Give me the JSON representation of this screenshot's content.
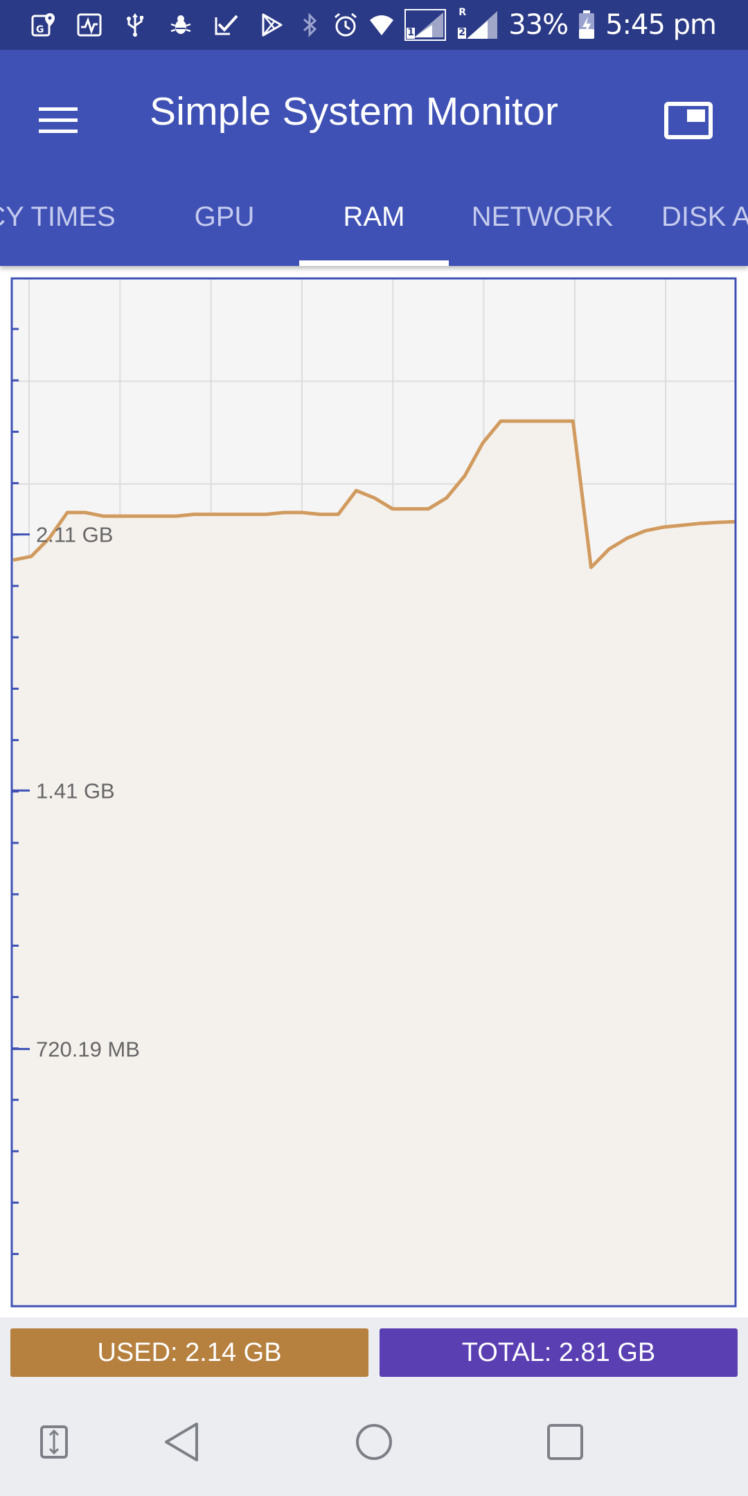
{
  "status_bar": {
    "battery_percent": "33%",
    "time": "5:45 pm",
    "sim1_label": "1",
    "sim2_label": "2",
    "roaming_label": "R",
    "left_icons": [
      "google-maps-notification-icon",
      "activity-monitor-icon",
      "usb-icon",
      "debug-bug-icon",
      "checkmark-task-icon",
      "play-store-icon"
    ],
    "right_icons": [
      "bluetooth-icon",
      "alarm-icon",
      "wifi-icon",
      "signal-sim1-icon",
      "signal-sim2-icon",
      "battery-charging-icon"
    ]
  },
  "app_bar": {
    "title": "Simple System Monitor",
    "menu_icon": "hamburger-menu-icon",
    "action_icon": "picture-in-picture-icon"
  },
  "tabs": [
    {
      "label": "CY TIMES",
      "active": false
    },
    {
      "label": "GPU",
      "active": false
    },
    {
      "label": "RAM",
      "active": true
    },
    {
      "label": "NETWORK",
      "active": false
    },
    {
      "label": "DISK A",
      "active": false
    }
  ],
  "chart_data": {
    "type": "area",
    "title": "",
    "xlabel": "",
    "ylabel": "",
    "y_unit": "GB",
    "y_tick_labels": [
      "720.19 MB",
      "1.41 GB",
      "2.11 GB"
    ],
    "y_tick_values": [
      0.7033,
      1.41,
      2.11
    ],
    "ylim": [
      0,
      2.81
    ],
    "grid": true,
    "line_color": "#d19a5e",
    "fill_color": "#f4f1ed",
    "series": [
      {
        "values": [
          2.04,
          2.05,
          2.1,
          2.17,
          2.17,
          2.16,
          2.16,
          2.16,
          2.16,
          2.16,
          2.165,
          2.165,
          2.165,
          2.165,
          2.165,
          2.17,
          2.17,
          2.165,
          2.165,
          2.23,
          2.21,
          2.18,
          2.18,
          2.18,
          2.21,
          2.27,
          2.36,
          2.42,
          2.42,
          2.42,
          2.42,
          2.42,
          2.02,
          2.07,
          2.1,
          2.12,
          2.13,
          2.135,
          2.14,
          2.143,
          2.145
        ]
      }
    ]
  },
  "legend": {
    "used_label": "USED: 2.14 GB",
    "total_label": "TOTAL: 2.81 GB",
    "used_color": "#b6803f",
    "total_color": "#5a3fb3"
  },
  "nav_bar": {
    "icons": [
      "switch-sim-icon",
      "back-icon",
      "home-icon",
      "recents-icon"
    ]
  }
}
